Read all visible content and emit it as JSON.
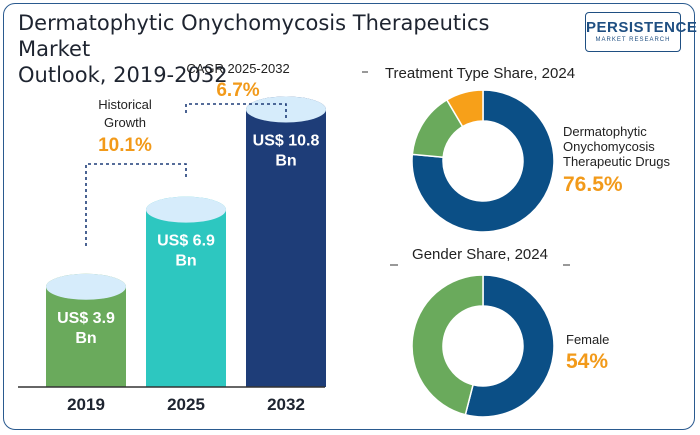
{
  "title_line1": "Dermatophytic Onychomycosis Therapeutics Market",
  "title_line2": "Outlook, 2019-2032",
  "logo": {
    "brand": "PERSISTENCE",
    "tagline": "MARKET RESEARCH"
  },
  "growth": {
    "historical_label_1": "Historical",
    "historical_label_2": "Growth",
    "historical_value": "10.1%",
    "cagr_label": "CAGR 2025-2032",
    "cagr_value": "6.7%"
  },
  "colors": {
    "accent": "#f29a1a",
    "navy": "#1e3d78",
    "teal": "#2dc7c0",
    "green": "#6aaa5c",
    "blue": "#0b4f86",
    "orange": "#f7a019"
  },
  "chart_data": [
    {
      "type": "bar",
      "categories": [
        "2019",
        "2025",
        "2032"
      ],
      "values": [
        3.9,
        6.9,
        10.8
      ],
      "data_labels": [
        [
          "US$ 3.9",
          "Bn"
        ],
        [
          "US$ 6.9",
          "Bn"
        ],
        [
          "US$ 10.8",
          "Bn"
        ]
      ],
      "unit": "US$ Bn",
      "colors": [
        "#6aaa5c",
        "#2dc7c0",
        "#1e3d78"
      ]
    },
    {
      "type": "pie",
      "title": "Treatment Type Share, 2024",
      "slices": [
        {
          "label": "Dermatophytic Onychomycosis Therapeutic Drugs",
          "value": 76.5,
          "color": "#0b4f86"
        },
        {
          "label": "",
          "value": 15.0,
          "color": "#6aaa5c"
        },
        {
          "label": "",
          "value": 8.5,
          "color": "#f7a019"
        }
      ],
      "callout_lines": [
        "Dermatophytic",
        "Onychomycosis",
        "Therapeutic Drugs"
      ],
      "callout_value": "76.5%"
    },
    {
      "type": "pie",
      "title": "Gender Share, 2024",
      "slices": [
        {
          "label": "Female",
          "value": 54,
          "color": "#0b4f86"
        },
        {
          "label": "",
          "value": 46,
          "color": "#6aaa5c"
        }
      ],
      "callout_lines": [
        "Female"
      ],
      "callout_value": "54%"
    }
  ]
}
